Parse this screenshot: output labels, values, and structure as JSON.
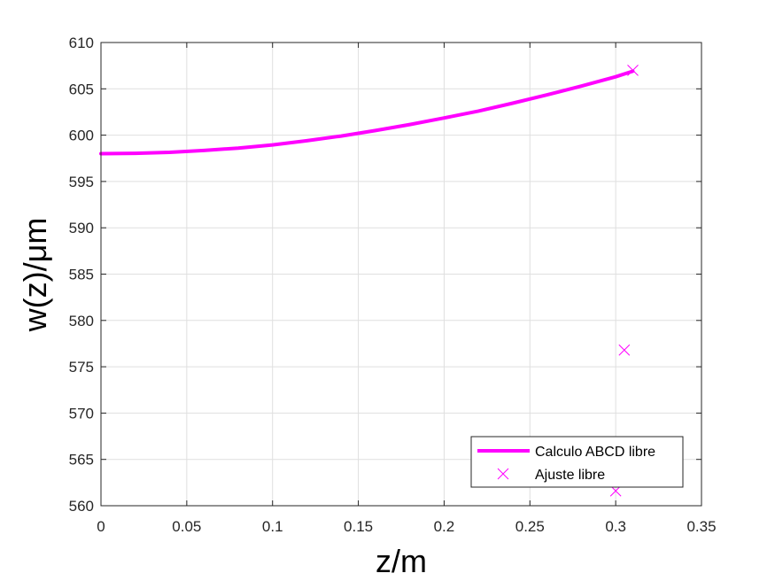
{
  "chart_data": {
    "type": "line",
    "xlabel": "z/m",
    "ylabel": "w(z)/μm",
    "xlim": [
      0,
      0.35
    ],
    "ylim": [
      560,
      610
    ],
    "xticks": [
      0,
      0.05,
      0.1,
      0.15,
      0.2,
      0.25,
      0.3,
      0.35
    ],
    "xtick_labels": [
      "0",
      "0.05",
      "0.1",
      "0.15",
      "0.2",
      "0.25",
      "0.3",
      "0.35"
    ],
    "yticks": [
      560,
      565,
      570,
      575,
      580,
      585,
      590,
      595,
      600,
      605,
      610
    ],
    "ytick_labels": [
      "560",
      "565",
      "570",
      "575",
      "580",
      "585",
      "590",
      "595",
      "600",
      "605",
      "610"
    ],
    "grid": true,
    "legend_position": "bottom-right",
    "series": [
      {
        "name": "Calculo ABCD libre",
        "kind": "line",
        "color": "#ff00ff",
        "x": [
          0,
          0.02,
          0.04,
          0.06,
          0.08,
          0.1,
          0.12,
          0.14,
          0.16,
          0.18,
          0.2,
          0.22,
          0.24,
          0.26,
          0.28,
          0.3,
          0.31
        ],
        "y": [
          598.0,
          598.04,
          598.15,
          598.35,
          598.6,
          598.95,
          599.4,
          599.9,
          600.5,
          601.15,
          601.85,
          602.6,
          603.45,
          604.35,
          605.3,
          606.3,
          606.9
        ]
      },
      {
        "name": "Ajuste libre",
        "kind": "scatter",
        "marker": "x",
        "color": "#ff00ff",
        "x": [
          0.31,
          0.305,
          0.3
        ],
        "y": [
          607.0,
          576.8,
          561.6
        ]
      }
    ]
  }
}
